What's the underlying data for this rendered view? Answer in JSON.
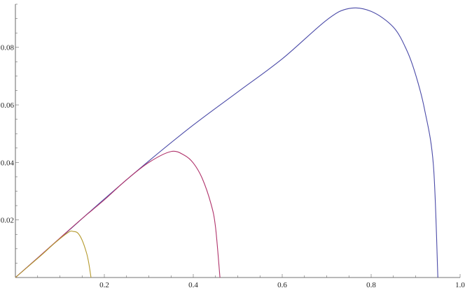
{
  "chart_data": {
    "type": "line",
    "title": "",
    "xlabel": "",
    "ylabel": "",
    "xlim": [
      0,
      1.0
    ],
    "ylim": [
      0,
      0.095
    ],
    "grid": false,
    "x_ticks": [
      {
        "value": 0.2,
        "label": "0.2"
      },
      {
        "value": 0.4,
        "label": "0.4"
      },
      {
        "value": 0.6,
        "label": "0.6"
      },
      {
        "value": 0.8,
        "label": "0.8"
      },
      {
        "value": 1.0,
        "label": "1.0"
      }
    ],
    "y_ticks": [
      {
        "value": 0.02,
        "label": "0.02"
      },
      {
        "value": 0.04,
        "label": "0.04"
      },
      {
        "value": 0.06,
        "label": "0.06"
      },
      {
        "value": 0.08,
        "label": "0.08"
      }
    ],
    "series": [
      {
        "color": "#4b4ba8",
        "x": [
          0,
          0.1,
          0.2,
          0.3,
          0.4,
          0.5,
          0.6,
          0.7,
          0.75,
          0.8,
          0.85,
          0.88,
          0.9,
          0.92,
          0.94,
          0.95
        ],
        "y": [
          0,
          0.0136,
          0.0273,
          0.0405,
          0.053,
          0.0645,
          0.076,
          0.0895,
          0.0935,
          0.0925,
          0.087,
          0.079,
          0.0705,
          0.0585,
          0.039,
          0.0
        ]
      },
      {
        "color": "#b0336b",
        "x": [
          0,
          0.05,
          0.1,
          0.15,
          0.2,
          0.25,
          0.3,
          0.35,
          0.38,
          0.4,
          0.42,
          0.44,
          0.45,
          0.46
        ],
        "y": [
          0,
          0.0068,
          0.0137,
          0.0205,
          0.027,
          0.034,
          0.04,
          0.0438,
          0.0425,
          0.0398,
          0.0345,
          0.0255,
          0.0175,
          0.0
        ]
      },
      {
        "color": "#b59a2e",
        "x": [
          0,
          0.03,
          0.06,
          0.09,
          0.12,
          0.13,
          0.14,
          0.15,
          0.16,
          0.165,
          0.17
        ],
        "y": [
          0,
          0.004,
          0.008,
          0.0122,
          0.0158,
          0.016,
          0.0155,
          0.013,
          0.0085,
          0.005,
          0.0
        ]
      }
    ]
  }
}
